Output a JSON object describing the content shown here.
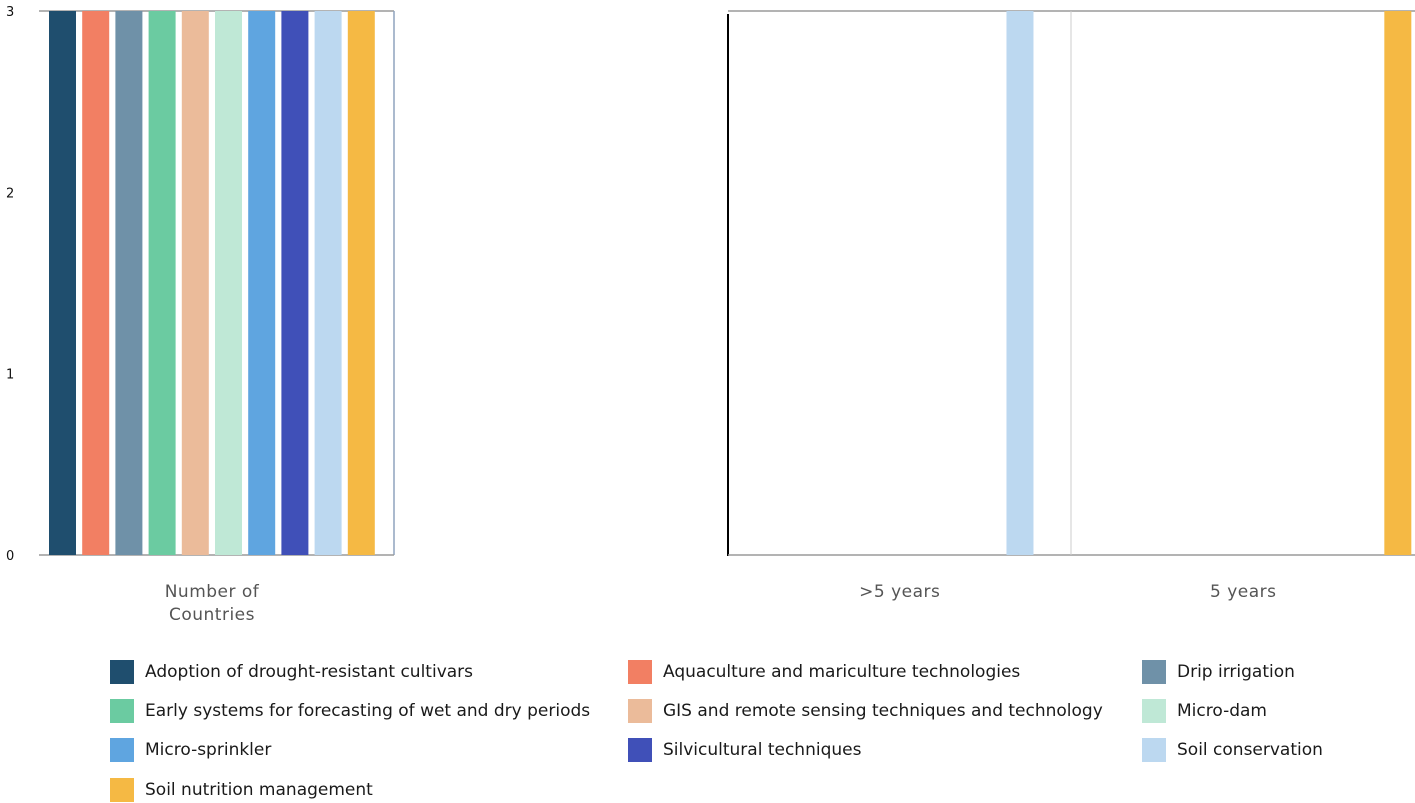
{
  "chart_data": {
    "type": "bar",
    "ylim": [
      0,
      3
    ],
    "yticks": [
      "0",
      "1",
      "2",
      "3"
    ],
    "grid": false,
    "legend_position": "bottom",
    "series": [
      {
        "name": "Adoption of drought-resistant cultivars",
        "color": "#1f4e6e"
      },
      {
        "name": "Aquaculture and mariculture technologies",
        "color": "#f27f63"
      },
      {
        "name": "Drip irrigation",
        "color": "#6f91a8"
      },
      {
        "name": "Early systems for forecasting of wet and dry periods",
        "color": "#6bcba1"
      },
      {
        "name": "GIS and remote sensing techniques and technology",
        "color": "#ebbb9a"
      },
      {
        "name": "Micro-dam",
        "color": "#bfe8d6"
      },
      {
        "name": "Micro-sprinkler",
        "color": "#5fa5e0"
      },
      {
        "name": "Silvicultural techniques",
        "color": "#4050b8"
      },
      {
        "name": "Soil conservation",
        "color": "#bcd8f0"
      },
      {
        "name": "Soil nutrition management",
        "color": "#f5b944"
      }
    ],
    "panels": [
      {
        "categories": [
          "Number of Countries"
        ],
        "values": [
          [
            3,
            3,
            3,
            3,
            3,
            3,
            3,
            3,
            3,
            3
          ]
        ]
      },
      {
        "categories": [
          ">5 years",
          "5 years"
        ],
        "values": [
          [
            0,
            0,
            0,
            0,
            0,
            0,
            0,
            0,
            3,
            0
          ],
          [
            0,
            0,
            0,
            0,
            0,
            0,
            0,
            0,
            0,
            3
          ]
        ]
      }
    ]
  }
}
